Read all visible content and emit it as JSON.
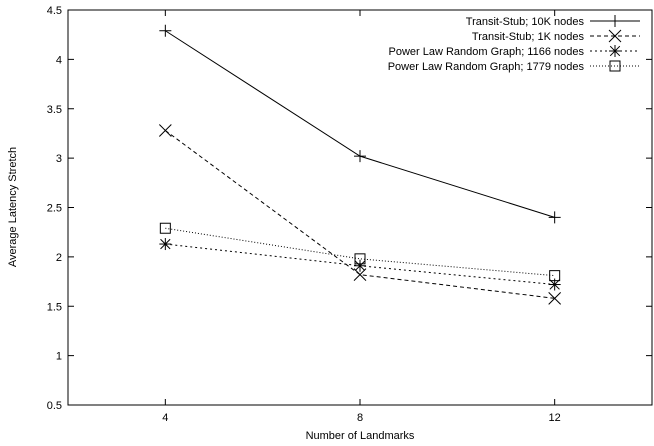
{
  "chart_data": {
    "type": "line",
    "xlabel": "Number of Landmarks",
    "ylabel": "Average Latency Stretch",
    "xlim": [
      2,
      14
    ],
    "ylim": [
      0.5,
      4.5
    ],
    "xticks": [
      4,
      8,
      12
    ],
    "yticks": [
      0.5,
      1,
      1.5,
      2,
      2.5,
      3,
      3.5,
      4,
      4.5
    ],
    "grid": false,
    "legend_position": "top-right",
    "x": [
      4,
      8,
      12
    ],
    "series": [
      {
        "name": "Transit-Stub; 10K nodes",
        "values": [
          4.29,
          3.02,
          2.4
        ],
        "marker": "plus",
        "dash": "solid"
      },
      {
        "name": "Transit-Stub; 1K nodes",
        "values": [
          3.28,
          1.82,
          1.58
        ],
        "marker": "cross",
        "dash": "dashed"
      },
      {
        "name": "Power Law Random Graph; 1166 nodes",
        "values": [
          2.13,
          1.91,
          1.72
        ],
        "marker": "star",
        "dash": "short-dashed"
      },
      {
        "name": "Power Law Random Graph; 1779 nodes",
        "values": [
          2.29,
          1.98,
          1.81
        ],
        "marker": "square",
        "dash": "dotted"
      }
    ]
  }
}
